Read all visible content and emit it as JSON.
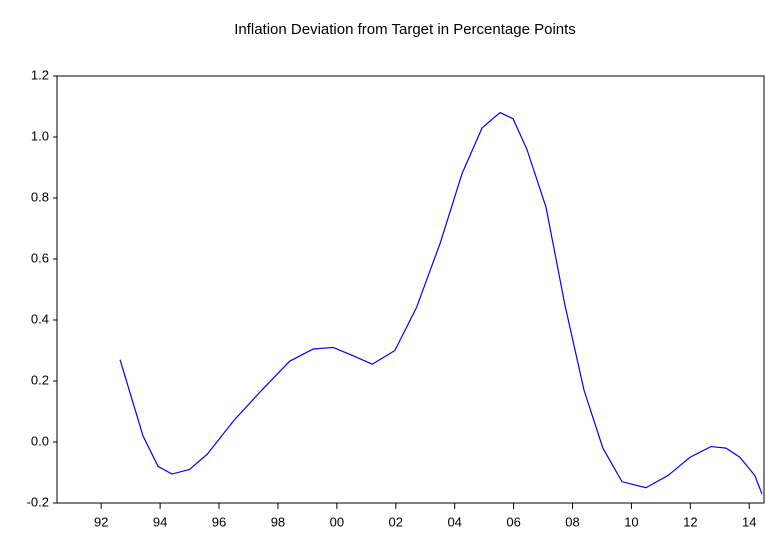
{
  "chart_data": {
    "type": "line",
    "title": "Inflation Deviation from Target in Percentage Points",
    "x": [
      1992.64,
      1993.42,
      1993.93,
      1994.4,
      1995.0,
      1995.6,
      1996.5,
      1997.45,
      1998.4,
      1999.2,
      1999.87,
      2000.5,
      2001.2,
      2001.97,
      2002.7,
      2003.5,
      2004.25,
      2004.93,
      2005.54,
      2005.98,
      2006.45,
      2007.1,
      2007.74,
      2008.39,
      2009.03,
      2009.68,
      2010.49,
      2011.24,
      2011.99,
      2012.7,
      2013.21,
      2013.68,
      2014.19,
      2014.43
    ],
    "series": [
      {
        "color": "#0000ff",
        "values": [
          0.27,
          0.02,
          -0.08,
          -0.105,
          -0.09,
          -0.04,
          0.07,
          0.17,
          0.265,
          0.305,
          0.31,
          0.285,
          0.255,
          0.3,
          0.44,
          0.65,
          0.88,
          1.03,
          1.08,
          1.06,
          0.96,
          0.77,
          0.45,
          0.17,
          -0.02,
          -0.13,
          -0.15,
          -0.11,
          -0.05,
          -0.015,
          -0.02,
          -0.05,
          -0.11,
          -0.17
        ]
      }
    ],
    "xlim": [
      1990.5,
      2014.5
    ],
    "xticks": [
      {
        "value": 1992,
        "label": "92"
      },
      {
        "value": 1994,
        "label": "94"
      },
      {
        "value": 1996,
        "label": "96"
      },
      {
        "value": 1998,
        "label": "98"
      },
      {
        "value": 2000,
        "label": "00"
      },
      {
        "value": 2002,
        "label": "02"
      },
      {
        "value": 2004,
        "label": "04"
      },
      {
        "value": 2006,
        "label": "06"
      },
      {
        "value": 2008,
        "label": "08"
      },
      {
        "value": 2010,
        "label": "10"
      },
      {
        "value": 2012,
        "label": "12"
      },
      {
        "value": 2014,
        "label": "14"
      }
    ],
    "ylim": [
      -0.2,
      1.2
    ],
    "yticks": [
      -0.2,
      {
        "value": 0,
        "label": "0.0"
      },
      0.2,
      0.4,
      0.6,
      0.8,
      {
        "value": 1,
        "label": "1.0"
      },
      1.2
    ]
  }
}
